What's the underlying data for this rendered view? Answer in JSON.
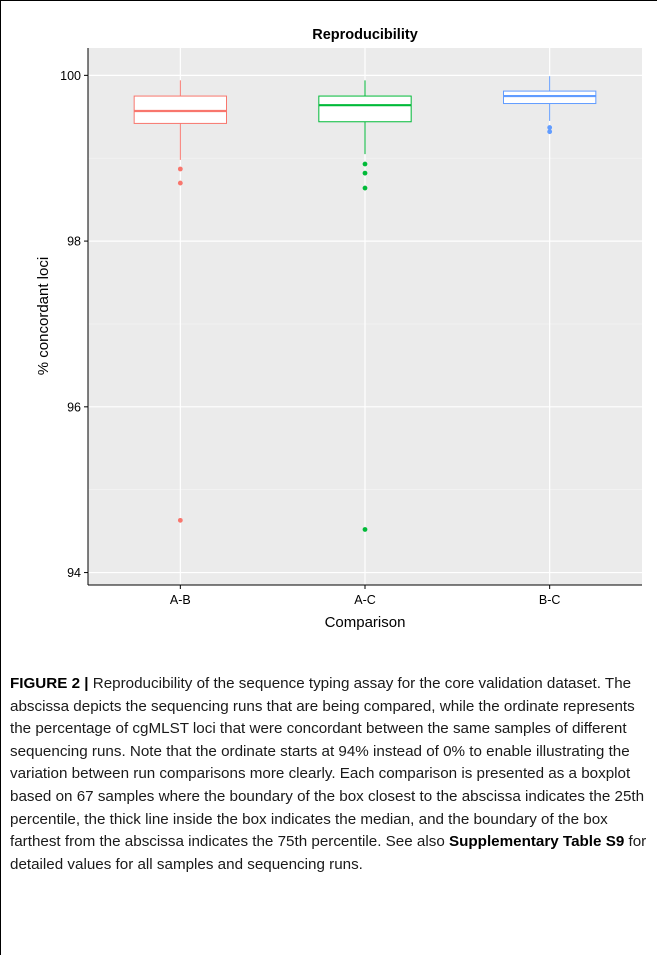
{
  "chart_data": {
    "type": "boxplot",
    "title": "Reproducibility",
    "xlabel": "Comparison",
    "ylabel": "% concordant loci",
    "ylim": [
      93.85,
      100.33
    ],
    "yticks": [
      94,
      96,
      98,
      100
    ],
    "grid": true,
    "categories": [
      "A-B",
      "A-C",
      "B-C"
    ],
    "colors": [
      "#F8766D",
      "#00BA38",
      "#619CFF"
    ],
    "boxes": [
      {
        "category": "A-B",
        "q1": 99.42,
        "median": 99.57,
        "q3": 99.75,
        "whisker_low": 98.98,
        "whisker_high": 99.94,
        "outliers": [
          98.87,
          98.7,
          94.63
        ]
      },
      {
        "category": "A-C",
        "q1": 99.44,
        "median": 99.64,
        "q3": 99.75,
        "whisker_low": 99.05,
        "whisker_high": 99.94,
        "outliers": [
          98.93,
          98.82,
          98.64,
          94.52
        ]
      },
      {
        "category": "B-C",
        "q1": 99.66,
        "median": 99.75,
        "q3": 99.81,
        "whisker_low": 99.45,
        "whisker_high": 99.99,
        "outliers": [
          99.37,
          99.32
        ]
      }
    ]
  },
  "caption": {
    "label": "FIGURE 2 |",
    "text_1": " Reproducibility of the sequence typing assay for the core validation dataset. The abscissa depicts the sequencing runs that are being compared, while the ordinate represents the percentage of cgMLST loci that were concordant between the same samples of different sequencing runs. Note that the ordinate starts at 94% instead of 0% to enable illustrating the variation between run comparisons more clearly. Each comparison is presented as a boxplot based on 67 samples where the boundary of the box closest to the abscissa indicates the 25th percentile, the thick line inside the box indicates the median, and the boundary of the box farthest from the abscissa indicates the 75th percentile. See also ",
    "ref": "Supplementary Table S9",
    "text_2": " for detailed values for all samples and sequencing runs."
  }
}
